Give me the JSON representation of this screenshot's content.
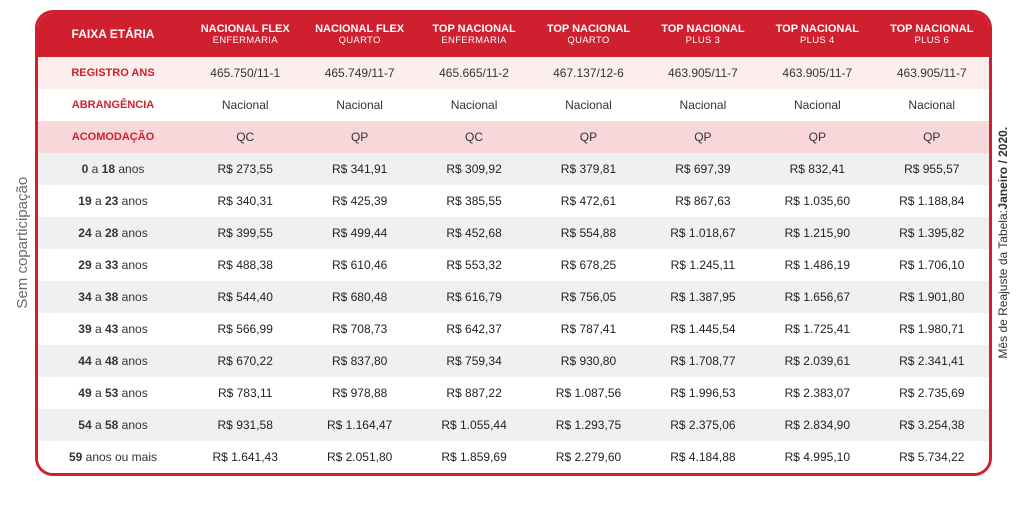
{
  "sideLeft": "Sem coparticipação",
  "sideRightPrefix": "Mês de Reajuste da Tabela: ",
  "sideRightBold": "Janeiro / 2020.",
  "cornerHeader": "FAIXA ETÁRIA",
  "plans": [
    {
      "title": "NACIONAL FLEX",
      "sub": "ENFERMARIA"
    },
    {
      "title": "NACIONAL FLEX",
      "sub": "QUARTO"
    },
    {
      "title": "TOP NACIONAL",
      "sub": "ENFERMARIA"
    },
    {
      "title": "TOP NACIONAL",
      "sub": "QUARTO"
    },
    {
      "title": "TOP NACIONAL",
      "sub": "PLUS 3"
    },
    {
      "title": "TOP NACIONAL",
      "sub": "PLUS 4"
    },
    {
      "title": "TOP NACIONAL",
      "sub": "PLUS 6"
    }
  ],
  "metaRows": [
    {
      "label": "REGISTRO ANS",
      "cls": "pink0",
      "values": [
        "465.750/11-1",
        "465.749/11-7",
        "465.665/11-2",
        "467.137/12-6",
        "463.905/11-7",
        "463.905/11-7",
        "463.905/11-7"
      ]
    },
    {
      "label": "ABRANGÊNCIA",
      "cls": "pink1",
      "values": [
        "Nacional",
        "Nacional",
        "Nacional",
        "Nacional",
        "Nacional",
        "Nacional",
        "Nacional"
      ]
    },
    {
      "label": "ACOMODAÇÃO",
      "cls": "pink2",
      "values": [
        "QC",
        "QP",
        "QC",
        "QP",
        "QP",
        "QP",
        "QP"
      ]
    }
  ],
  "ageRows": [
    {
      "from": "0",
      "to": "18",
      "suffix": "anos",
      "prices": [
        "R$ 273,55",
        "R$ 341,91",
        "R$ 309,92",
        "R$ 379,81",
        "R$ 697,39",
        "R$ 832,41",
        "R$ 955,57"
      ]
    },
    {
      "from": "19",
      "to": "23",
      "suffix": "anos",
      "prices": [
        "R$ 340,31",
        "R$ 425,39",
        "R$ 385,55",
        "R$ 472,61",
        "R$ 867,63",
        "R$ 1.035,60",
        "R$ 1.188,84"
      ]
    },
    {
      "from": "24",
      "to": "28",
      "suffix": "anos",
      "prices": [
        "R$ 399,55",
        "R$ 499,44",
        "R$ 452,68",
        "R$ 554,88",
        "R$ 1.018,67",
        "R$ 1.215,90",
        "R$ 1.395,82"
      ]
    },
    {
      "from": "29",
      "to": "33",
      "suffix": "anos",
      "prices": [
        "R$ 488,38",
        "R$ 610,46",
        "R$ 553,32",
        "R$ 678,25",
        "R$ 1.245,11",
        "R$ 1.486,19",
        "R$ 1.706,10"
      ]
    },
    {
      "from": "34",
      "to": "38",
      "suffix": "anos",
      "prices": [
        "R$ 544,40",
        "R$ 680,48",
        "R$ 616,79",
        "R$ 756,05",
        "R$ 1.387,95",
        "R$ 1.656,67",
        "R$ 1.901,80"
      ]
    },
    {
      "from": "39",
      "to": "43",
      "suffix": "anos",
      "prices": [
        "R$ 566,99",
        "R$ 708,73",
        "R$ 642,37",
        "R$ 787,41",
        "R$ 1.445,54",
        "R$ 1.725,41",
        "R$ 1.980,71"
      ]
    },
    {
      "from": "44",
      "to": "48",
      "suffix": "anos",
      "prices": [
        "R$ 670,22",
        "R$ 837,80",
        "R$ 759,34",
        "R$ 930,80",
        "R$ 1.708,77",
        "R$ 2.039,61",
        "R$ 2.341,41"
      ]
    },
    {
      "from": "49",
      "to": "53",
      "suffix": "anos",
      "prices": [
        "R$ 783,11",
        "R$ 978,88",
        "R$ 887,22",
        "R$ 1.087,56",
        "R$ 1.996,53",
        "R$ 2.383,07",
        "R$ 2.735,69"
      ]
    },
    {
      "from": "54",
      "to": "58",
      "suffix": "anos",
      "prices": [
        "R$ 931,58",
        "R$ 1.164,47",
        "R$ 1.055,44",
        "R$ 1.293,75",
        "R$ 2.375,06",
        "R$ 2.834,90",
        "R$ 3.254,38"
      ]
    },
    {
      "from": "59",
      "to": null,
      "suffix": "anos ou mais",
      "prices": [
        "R$ 1.641,43",
        "R$ 2.051,80",
        "R$ 1.859,69",
        "R$ 2.279,60",
        "R$ 4.184,88",
        "R$ 4.995,10",
        "R$ 5.734,22"
      ]
    }
  ],
  "colors": {
    "brand": "#d01f2e",
    "pinkLight": "#fdeeee",
    "pinkMed": "#f8d7da",
    "rowAlt": "#eef0f2"
  }
}
